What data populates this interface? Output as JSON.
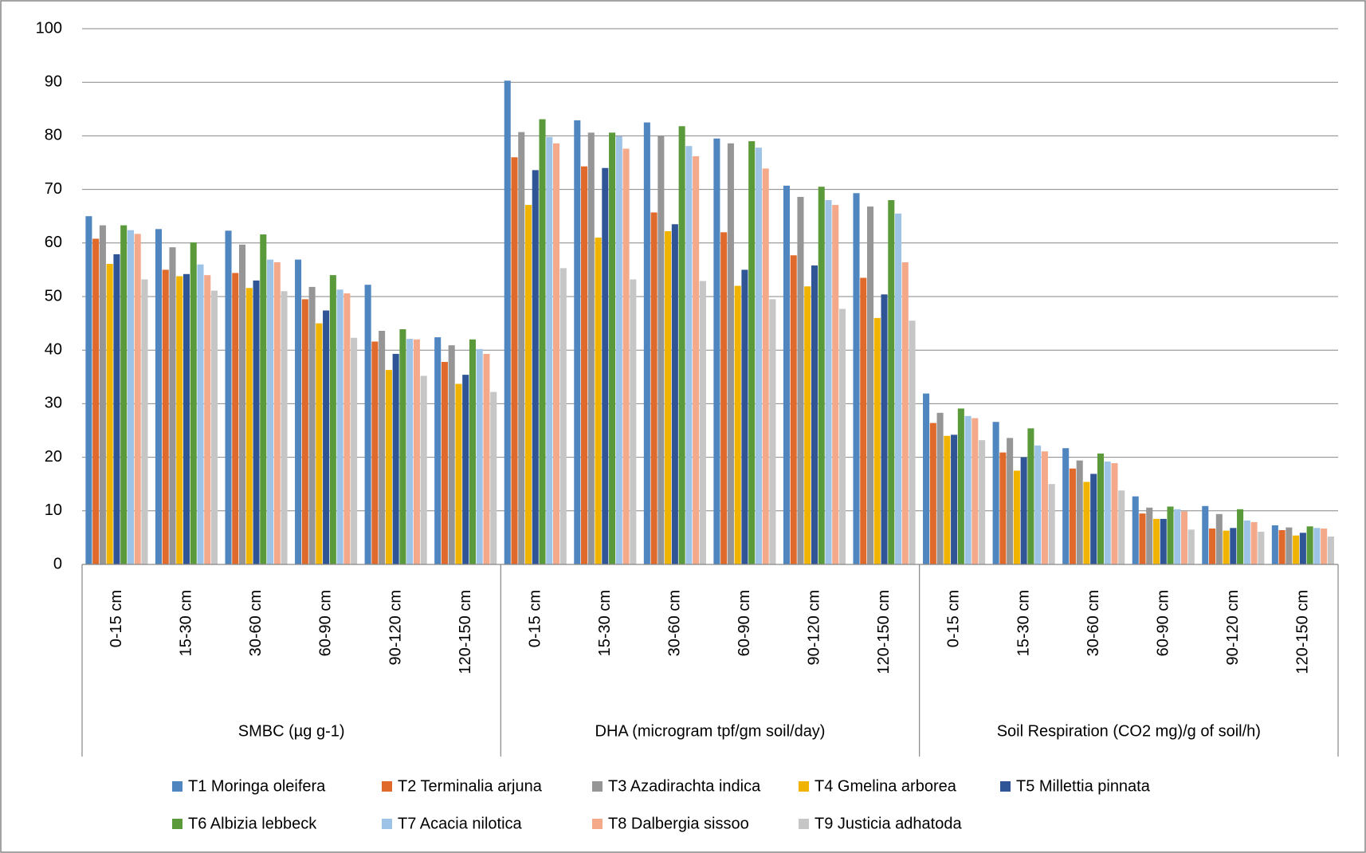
{
  "chart_data": {
    "type": "bar",
    "categories": [
      "0-15 cm",
      "15-30 cm",
      "30-60 cm",
      "60-90 cm",
      "90-120 cm",
      "120-150 cm",
      "0-15 cm",
      "15-30 cm",
      "30-60 cm",
      "60-90 cm",
      "90-120 cm",
      "120-150 cm",
      "0-15 cm",
      "15-30 cm",
      "30-60 cm",
      "60-90 cm",
      "90-120 cm",
      "120-150 cm"
    ],
    "groups": [
      "SMBC (µg g-1)",
      "DHA (microgram tpf/gm soil/day)",
      "Soil Respiration (CO2 mg)/g of soil/h)"
    ],
    "series": [
      {
        "name": "T1 Moringa oleifera",
        "color": "#4f86c0",
        "values": [
          65,
          62.6,
          62.3,
          56.9,
          52.2,
          42.4,
          90.3,
          82.9,
          82.5,
          79.5,
          70.7,
          69.3,
          31.9,
          26.6,
          21.7,
          12.7,
          10.9,
          7.3
        ]
      },
      {
        "name": "T2 Terminalia arjuna",
        "color": "#e06a2b",
        "values": [
          60.8,
          55,
          54.4,
          49.5,
          41.6,
          37.8,
          76,
          74.3,
          65.7,
          62,
          57.7,
          53.5,
          26.4,
          20.9,
          17.9,
          9.5,
          6.7,
          6.4
        ]
      },
      {
        "name": "T3 Azadirachta indica",
        "color": "#969696",
        "values": [
          63.3,
          59.2,
          59.7,
          51.8,
          43.6,
          40.9,
          80.7,
          80.6,
          80,
          78.6,
          68.6,
          66.8,
          28.3,
          23.6,
          19.4,
          10.6,
          9.4,
          6.9
        ]
      },
      {
        "name": "T4 Gmelina arborea",
        "color": "#f0b400",
        "values": [
          56.1,
          53.8,
          51.6,
          45,
          36.3,
          33.7,
          67.1,
          61,
          62.2,
          52,
          51.9,
          46,
          24,
          17.5,
          15.4,
          8.5,
          6.3,
          5.4
        ]
      },
      {
        "name": "T5 Millettia pinnata",
        "color": "#2f5597",
        "values": [
          57.9,
          54.2,
          53,
          47.4,
          39.3,
          35.4,
          73.6,
          74,
          63.5,
          55,
          55.8,
          50.4,
          24.2,
          20,
          16.9,
          8.5,
          6.8,
          5.9
        ]
      },
      {
        "name": "T6 Albizia lebbeck",
        "color": "#5b9a3a",
        "values": [
          63.3,
          60.1,
          61.6,
          54,
          43.9,
          42,
          83.1,
          80.6,
          81.8,
          79,
          70.5,
          68,
          29.1,
          25.4,
          20.7,
          10.8,
          10.3,
          7.1
        ]
      },
      {
        "name": "T7 Acacia nilotica",
        "color": "#9dc3e6",
        "values": [
          62.4,
          56,
          56.9,
          51.3,
          42.1,
          40.2,
          79.8,
          79.9,
          78.1,
          77.8,
          68,
          65.5,
          27.7,
          22.2,
          19.2,
          10.3,
          8.2,
          6.8
        ]
      },
      {
        "name": "T8 Dalbergia sissoo",
        "color": "#f4a98a",
        "values": [
          61.7,
          54,
          56.4,
          50.6,
          42,
          39.3,
          78.6,
          77.6,
          76.2,
          73.9,
          67.1,
          56.4,
          27.3,
          21.1,
          18.9,
          9.9,
          7.9,
          6.7
        ]
      },
      {
        "name": "T9 Justicia adhatoda",
        "color": "#c6c6c6",
        "values": [
          53.2,
          51.1,
          51,
          42.3,
          35.2,
          32.2,
          55.3,
          53.2,
          52.9,
          49.5,
          47.7,
          45.5,
          23.2,
          15,
          13.8,
          6.5,
          6.1,
          5.2
        ]
      }
    ],
    "ylim": [
      0,
      100
    ],
    "yticks": [
      0,
      10,
      20,
      30,
      40,
      50,
      60,
      70,
      80,
      90,
      100
    ],
    "grid": true,
    "legend": "bottom"
  }
}
